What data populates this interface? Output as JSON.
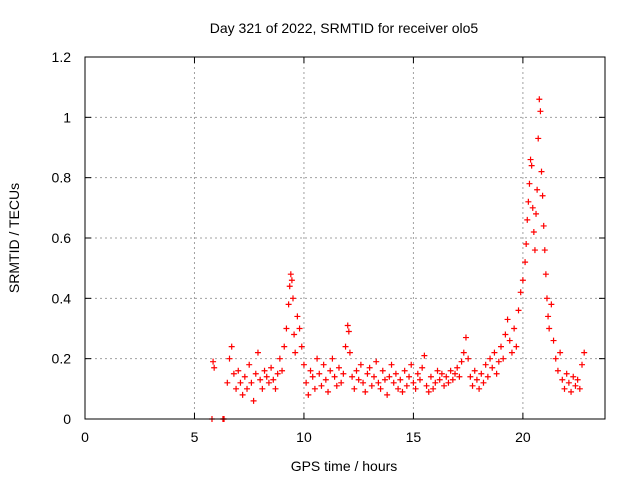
{
  "chart_data": {
    "type": "scatter",
    "title": "Day 321 of 2022, SRMTID for receiver olo5",
    "xlabel": "GPS time / hours",
    "ylabel": "SRMTID / TECUs",
    "xlim": [
      0,
      23.75
    ],
    "ylim": [
      0,
      1.2
    ],
    "xticks": [
      0,
      5,
      10,
      15,
      20
    ],
    "xtick_labels": [
      "0",
      "5",
      "10",
      "15",
      "20"
    ],
    "yticks": [
      0,
      0.2,
      0.4,
      0.6,
      0.8,
      1.0,
      1.2
    ],
    "ytick_labels": [
      "0",
      "0.2",
      "0.4",
      "0.6",
      "0.8",
      "1",
      "1.2"
    ],
    "grid": true,
    "marker": "+",
    "color": "#ff0000",
    "series": [
      {
        "name": "SRMTID",
        "x": [
          5.8,
          5.85,
          5.9,
          6.3,
          6.35,
          6.5,
          6.6,
          6.7,
          6.8,
          6.9,
          7.0,
          7.1,
          7.2,
          7.3,
          7.4,
          7.5,
          7.6,
          7.7,
          7.8,
          7.9,
          8.0,
          8.1,
          8.2,
          8.3,
          8.4,
          8.5,
          8.6,
          8.7,
          8.8,
          8.9,
          9.0,
          9.1,
          9.2,
          9.3,
          9.35,
          9.4,
          9.45,
          9.5,
          9.55,
          9.6,
          9.7,
          9.8,
          9.9,
          10.0,
          10.1,
          10.2,
          10.3,
          10.4,
          10.5,
          10.6,
          10.7,
          10.8,
          10.9,
          11.0,
          11.1,
          11.2,
          11.3,
          11.4,
          11.5,
          11.6,
          11.7,
          11.8,
          11.9,
          12.0,
          12.05,
          12.1,
          12.2,
          12.3,
          12.4,
          12.5,
          12.6,
          12.7,
          12.8,
          12.9,
          13.0,
          13.1,
          13.2,
          13.3,
          13.4,
          13.5,
          13.6,
          13.7,
          13.8,
          13.9,
          14.0,
          14.1,
          14.2,
          14.3,
          14.4,
          14.5,
          14.6,
          14.7,
          14.8,
          14.9,
          15.0,
          15.1,
          15.2,
          15.3,
          15.4,
          15.5,
          15.6,
          15.7,
          15.8,
          15.9,
          16.0,
          16.1,
          16.2,
          16.3,
          16.4,
          16.5,
          16.6,
          16.7,
          16.8,
          16.9,
          17.0,
          17.1,
          17.2,
          17.3,
          17.4,
          17.5,
          17.6,
          17.7,
          17.8,
          17.9,
          18.0,
          18.1,
          18.2,
          18.3,
          18.4,
          18.5,
          18.6,
          18.7,
          18.8,
          18.9,
          19.0,
          19.1,
          19.2,
          19.3,
          19.4,
          19.5,
          19.6,
          19.7,
          19.8,
          19.9,
          20.0,
          20.1,
          20.15,
          20.2,
          20.25,
          20.3,
          20.35,
          20.4,
          20.45,
          20.5,
          20.55,
          20.6,
          20.65,
          20.7,
          20.75,
          20.8,
          20.85,
          20.9,
          20.95,
          21.0,
          21.05,
          21.1,
          21.15,
          21.2,
          21.3,
          21.4,
          21.5,
          21.6,
          21.7,
          21.8,
          21.9,
          22.0,
          22.1,
          22.2,
          22.3,
          22.4,
          22.5,
          22.6,
          22.7,
          22.8
        ],
        "y": [
          0.0,
          0.19,
          0.17,
          0.0,
          0.0,
          0.12,
          0.2,
          0.24,
          0.15,
          0.1,
          0.16,
          0.12,
          0.08,
          0.14,
          0.1,
          0.18,
          0.12,
          0.06,
          0.15,
          0.22,
          0.13,
          0.1,
          0.16,
          0.14,
          0.12,
          0.17,
          0.13,
          0.1,
          0.15,
          0.2,
          0.16,
          0.24,
          0.3,
          0.38,
          0.44,
          0.48,
          0.46,
          0.4,
          0.28,
          0.22,
          0.34,
          0.3,
          0.24,
          0.18,
          0.12,
          0.08,
          0.16,
          0.14,
          0.1,
          0.2,
          0.15,
          0.11,
          0.18,
          0.13,
          0.09,
          0.16,
          0.2,
          0.14,
          0.11,
          0.17,
          0.12,
          0.15,
          0.24,
          0.31,
          0.29,
          0.22,
          0.14,
          0.1,
          0.16,
          0.13,
          0.18,
          0.12,
          0.09,
          0.15,
          0.17,
          0.11,
          0.14,
          0.19,
          0.12,
          0.1,
          0.16,
          0.13,
          0.08,
          0.14,
          0.18,
          0.12,
          0.15,
          0.1,
          0.13,
          0.09,
          0.16,
          0.11,
          0.14,
          0.18,
          0.12,
          0.1,
          0.15,
          0.13,
          0.17,
          0.21,
          0.11,
          0.09,
          0.14,
          0.1,
          0.12,
          0.16,
          0.13,
          0.15,
          0.11,
          0.14,
          0.12,
          0.16,
          0.13,
          0.15,
          0.17,
          0.14,
          0.19,
          0.22,
          0.27,
          0.2,
          0.14,
          0.11,
          0.16,
          0.13,
          0.1,
          0.15,
          0.12,
          0.18,
          0.14,
          0.2,
          0.17,
          0.22,
          0.15,
          0.19,
          0.24,
          0.2,
          0.28,
          0.33,
          0.26,
          0.22,
          0.3,
          0.24,
          0.36,
          0.42,
          0.46,
          0.52,
          0.58,
          0.66,
          0.72,
          0.78,
          0.86,
          0.84,
          0.7,
          0.62,
          0.56,
          0.68,
          0.76,
          0.93,
          1.06,
          1.02,
          0.82,
          0.74,
          0.64,
          0.56,
          0.48,
          0.4,
          0.34,
          0.3,
          0.38,
          0.26,
          0.2,
          0.16,
          0.22,
          0.13,
          0.1,
          0.15,
          0.12,
          0.09,
          0.14,
          0.11,
          0.13,
          0.1,
          0.18,
          0.22
        ]
      }
    ]
  }
}
